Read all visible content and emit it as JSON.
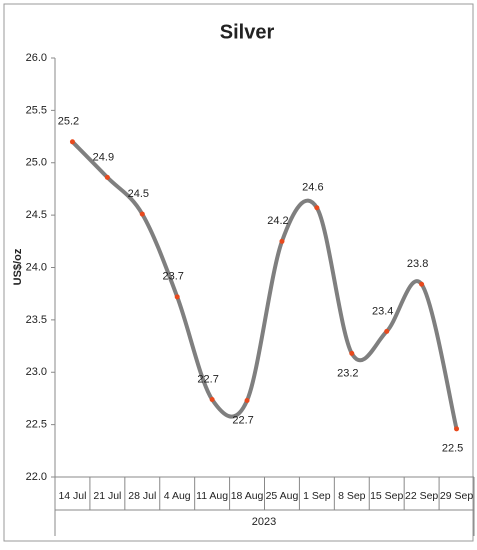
{
  "chart_data": {
    "type": "line",
    "title": "Silver",
    "y_label": "US$/oz",
    "x_group_label": "2023",
    "categories": [
      "14 Jul",
      "21 Jul",
      "28 Jul",
      "4 Aug",
      "11 Aug",
      "18 Aug",
      "25 Aug",
      "1 Sep",
      "8 Sep",
      "15 Sep",
      "22 Sep",
      "29 Sep"
    ],
    "series": [
      {
        "name": "Silver",
        "color": "#7f7f7f",
        "marker_color": "#e8491d",
        "values": [
          25.2,
          24.86,
          24.51,
          23.72,
          22.74,
          22.73,
          24.25,
          24.57,
          23.18,
          23.39,
          23.84,
          22.46
        ],
        "value_labels": [
          "25.2",
          "24.9",
          "24.5",
          "23.7",
          "22.7",
          "22.7",
          "24.2",
          "24.6",
          "23.2",
          "23.4",
          "23.8",
          "22.5"
        ]
      }
    ],
    "ylim": [
      22,
      26
    ],
    "yticks": [
      {
        "value": 22,
        "label": "22.0"
      },
      22.5,
      {
        "value": 23,
        "label": "23.0"
      },
      23.5,
      {
        "value": 24,
        "label": "24.0"
      },
      24.5,
      {
        "value": 25,
        "label": "25.0"
      },
      25.5,
      {
        "value": 26,
        "label": "26.0"
      }
    ],
    "smooth": true
  }
}
